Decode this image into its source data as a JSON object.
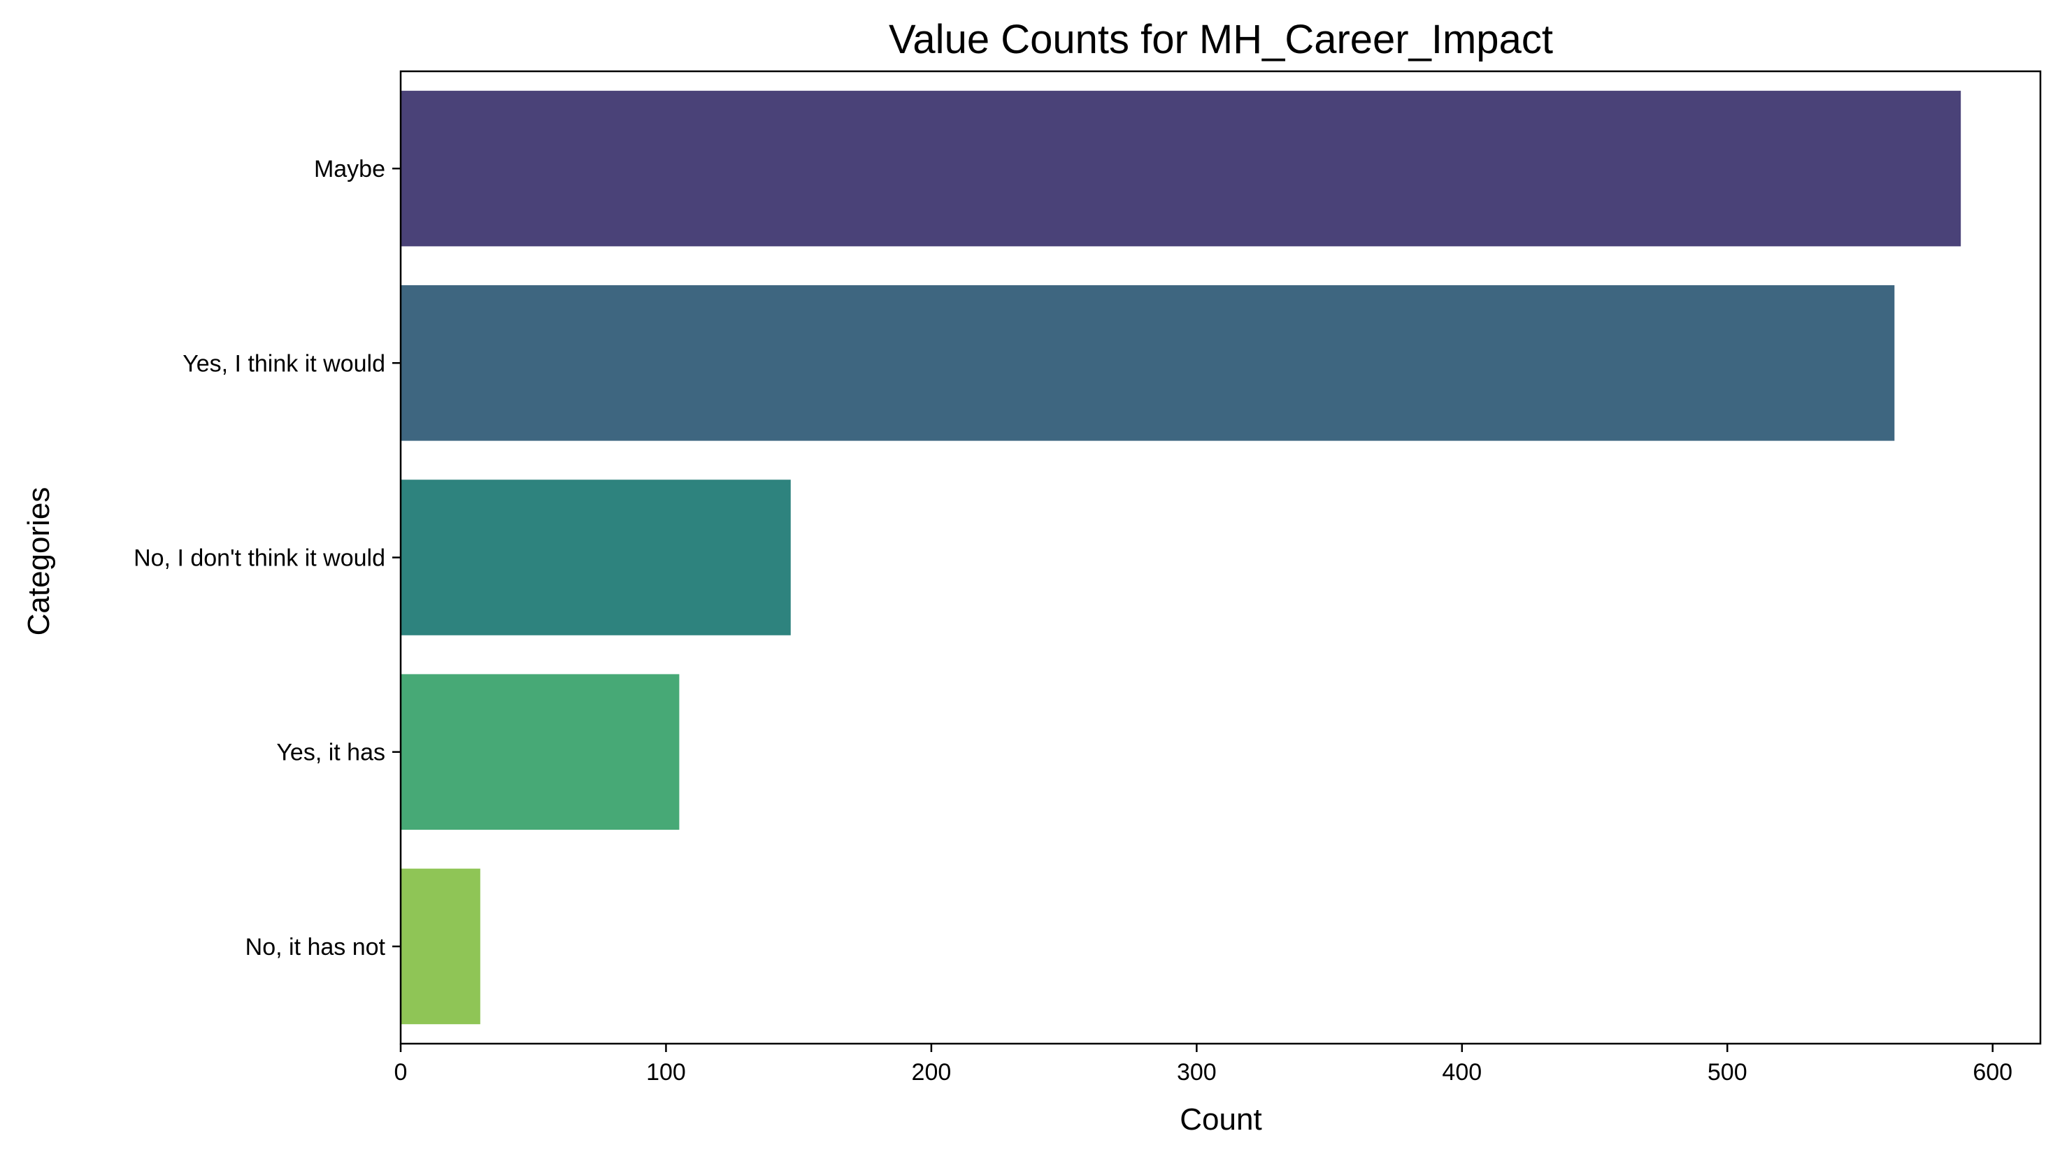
{
  "chart_data": {
    "type": "bar",
    "orientation": "horizontal",
    "title": "Value Counts for MH_Career_Impact",
    "xlabel": "Count",
    "ylabel": "Categories",
    "categories": [
      "Maybe",
      "Yes, I think it would",
      "No, I don't think it would",
      "Yes, it has",
      "No, it has not"
    ],
    "values": [
      588,
      563,
      147,
      105,
      30
    ],
    "colors": [
      "#4a4278",
      "#3e6680",
      "#2e837e",
      "#47a976",
      "#8fc556"
    ],
    "xlim": [
      0,
      618
    ],
    "xticks": [
      0,
      100,
      200,
      300,
      400,
      500,
      600
    ],
    "grid": false,
    "legend": "none"
  }
}
